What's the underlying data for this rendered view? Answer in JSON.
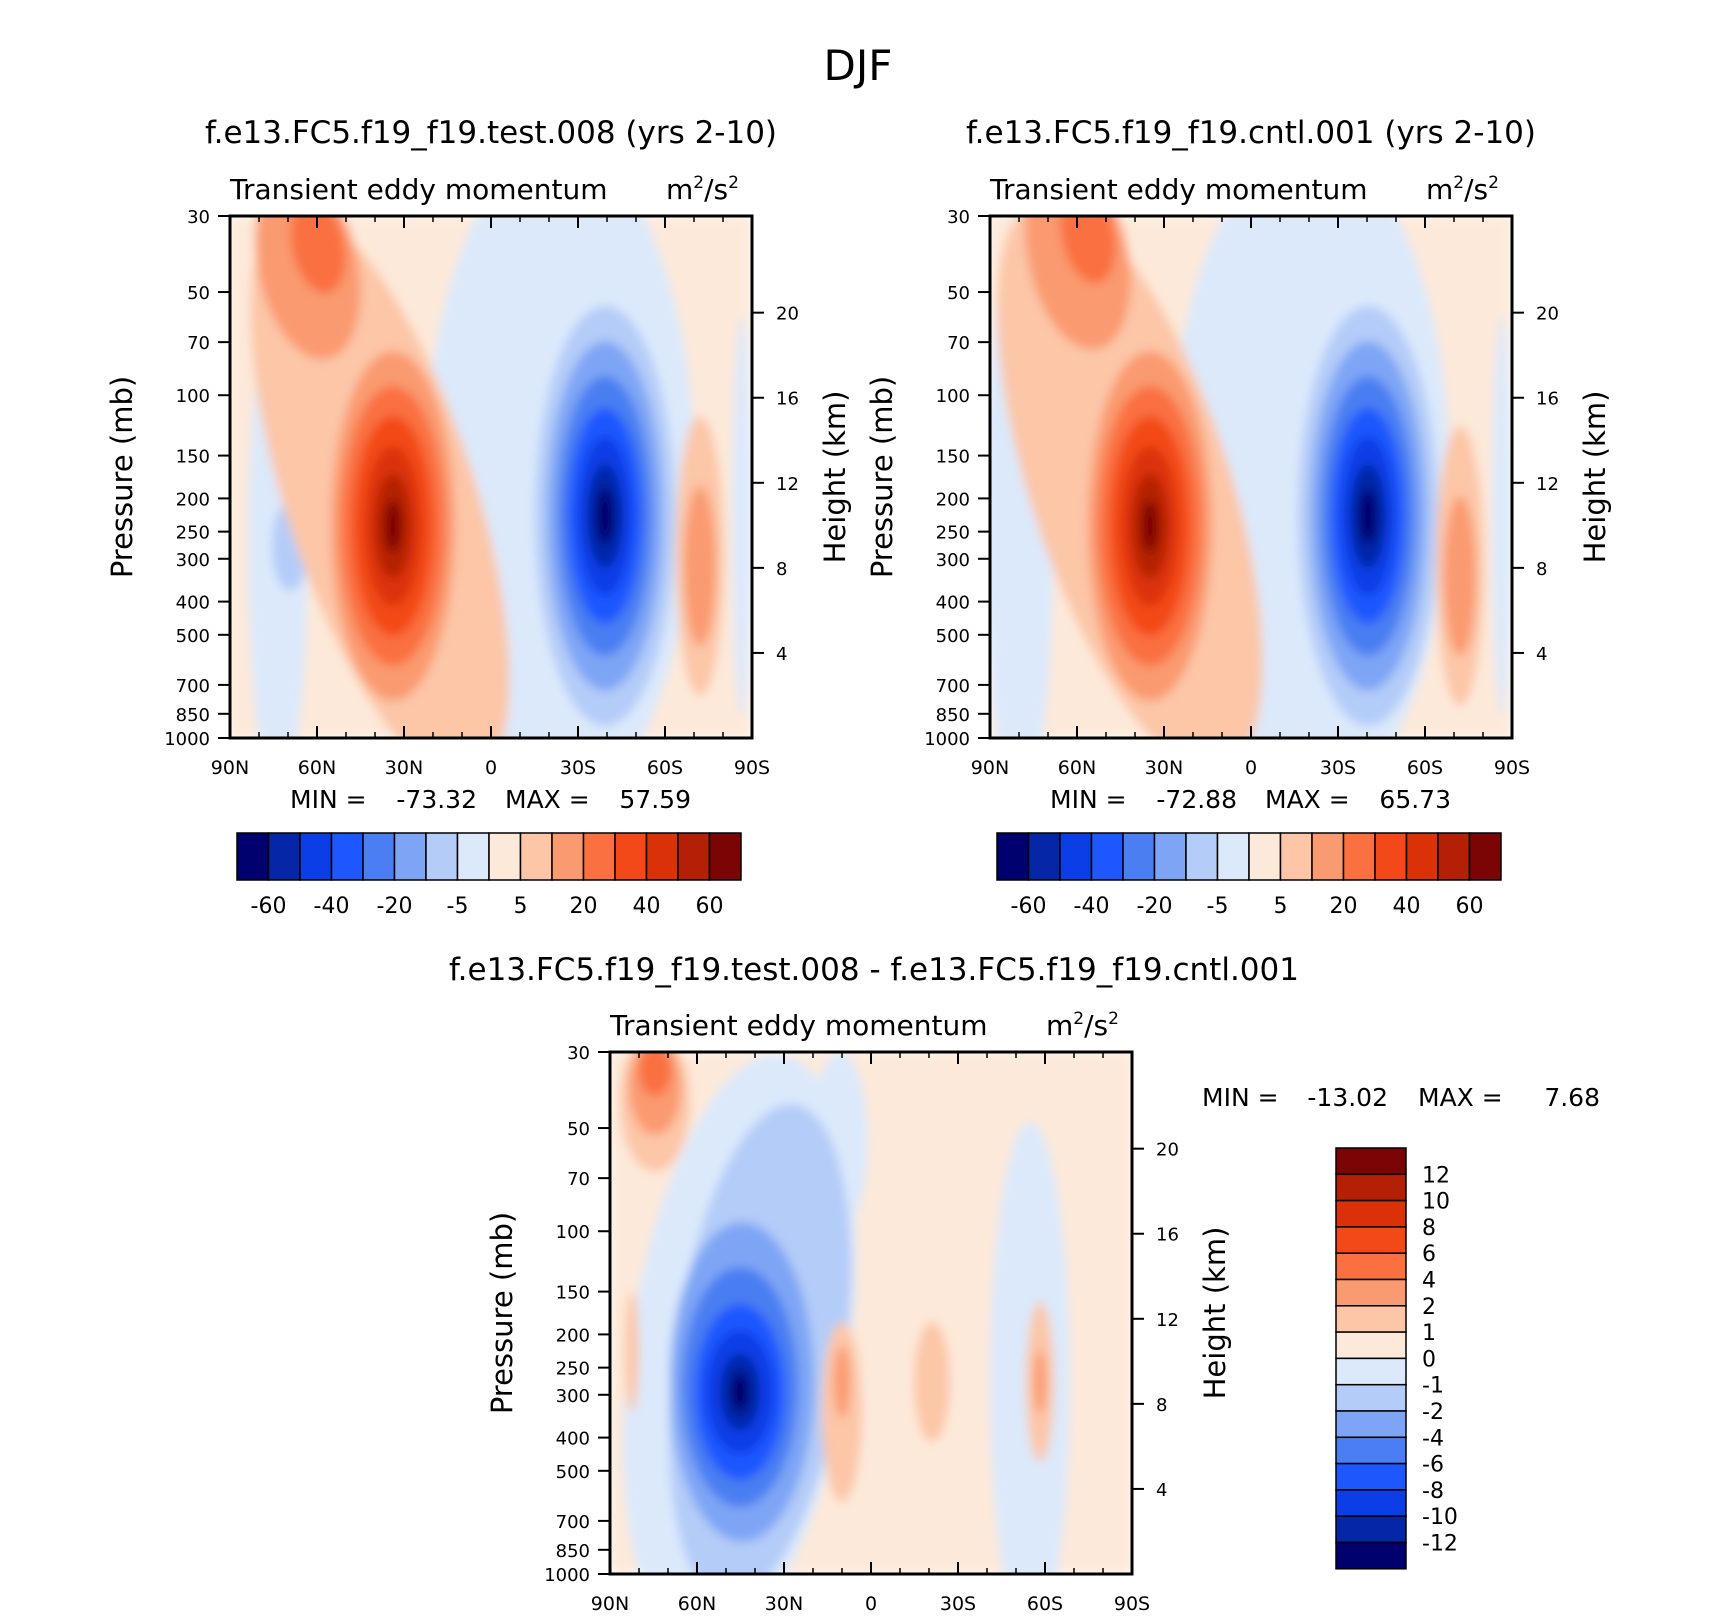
{
  "title": "DJF",
  "common": {
    "field": "Transient eddy momentum",
    "units_base": "m",
    "units_sup1": "2",
    "units_mid": "/s",
    "units_sup2": "2",
    "ylabel": "Pressure (mb)",
    "ylabel_right": "Height (km)",
    "min_label": "MIN =",
    "max_label": "MAX ="
  },
  "chart_data": [
    {
      "type": "heatmap",
      "title": "f.e13.FC5.f19_f19.test.008 (yrs 2-10)",
      "xticks": [
        "90N",
        "60N",
        "30N",
        "0",
        "30S",
        "60S",
        "90S"
      ],
      "x_values": [
        90,
        60,
        30,
        0,
        -30,
        -60,
        -90
      ],
      "yticks": [
        "30",
        "50",
        "70",
        "100",
        "150",
        "200",
        "250",
        "300",
        "400",
        "500",
        "700",
        "850",
        "1000"
      ],
      "ylim": [
        1000,
        30
      ],
      "yticks_right": [
        "4",
        "8",
        "12",
        "16",
        "20"
      ],
      "min": "-73.32",
      "max": "57.59",
      "colorbar_labels": [
        "-60",
        "-40",
        "-20",
        "-5",
        "5",
        "20",
        "40",
        "60"
      ],
      "features": [
        {
          "lat": 37,
          "p": 250,
          "value": 57.59
        },
        {
          "lat": 67,
          "p": 30,
          "value": 40
        },
        {
          "lat": -42,
          "p": 230,
          "value": -73.32
        },
        {
          "lat": -68,
          "p": 300,
          "value": 20
        },
        {
          "lat": 68,
          "p": 300,
          "value": -8
        }
      ]
    },
    {
      "type": "heatmap",
      "title": "f.e13.FC5.f19_f19.cntl.001 (yrs 2-10)",
      "xticks": [
        "90N",
        "60N",
        "30N",
        "0",
        "30S",
        "60S",
        "90S"
      ],
      "x_values": [
        90,
        60,
        30,
        0,
        -30,
        -60,
        -90
      ],
      "yticks": [
        "30",
        "50",
        "70",
        "100",
        "150",
        "200",
        "250",
        "300",
        "400",
        "500",
        "700",
        "850",
        "1000"
      ],
      "ylim": [
        1000,
        30
      ],
      "yticks_right": [
        "4",
        "8",
        "12",
        "16",
        "20"
      ],
      "min": "-72.88",
      "max": "65.73",
      "colorbar_labels": [
        "-60",
        "-40",
        "-20",
        "-5",
        "5",
        "20",
        "40",
        "60"
      ],
      "features": [
        {
          "lat": 35,
          "p": 250,
          "value": 65.73
        },
        {
          "lat": 58,
          "p": 30,
          "value": 45
        },
        {
          "lat": -40,
          "p": 230,
          "value": -72.88
        },
        {
          "lat": -72,
          "p": 300,
          "value": 20
        }
      ]
    },
    {
      "type": "heatmap",
      "title": "f.e13.FC5.f19_f19.test.008 - f.e13.FC5.f19_f19.cntl.001",
      "xticks": [
        "90N",
        "60N",
        "30N",
        "0",
        "30S",
        "60S",
        "90S"
      ],
      "x_values": [
        90,
        60,
        30,
        0,
        -30,
        -60,
        -90
      ],
      "yticks": [
        "30",
        "50",
        "70",
        "100",
        "150",
        "200",
        "250",
        "300",
        "400",
        "500",
        "700",
        "850",
        "1000"
      ],
      "ylim": [
        1000,
        30
      ],
      "yticks_right": [
        "4",
        "8",
        "12",
        "16",
        "20"
      ],
      "min": "-13.02",
      "max": "7.68",
      "colorbar_labels": [
        "12",
        "10",
        "8",
        "6",
        "4",
        "2",
        "1",
        "0",
        "-1",
        "-2",
        "-4",
        "-6",
        "-8",
        "-10",
        "-12"
      ],
      "features": [
        {
          "lat": 46,
          "p": 280,
          "value": -13.02
        },
        {
          "lat": 74,
          "p": 35,
          "value": 7.68
        },
        {
          "lat": 8,
          "p": 250,
          "value": 3
        },
        {
          "lat": -60,
          "p": 270,
          "value": 3
        }
      ]
    }
  ],
  "colors": {
    "scale": [
      "#00006e",
      "#0626a8",
      "#0b3ee6",
      "#1e56ff",
      "#4a7ef2",
      "#7ea5f5",
      "#b4ccf8",
      "#dbe9fb",
      "#fde9d9",
      "#fcc6a7",
      "#fa9a70",
      "#fa7040",
      "#f34818",
      "#db3108",
      "#b32006",
      "#7b0404"
    ]
  }
}
